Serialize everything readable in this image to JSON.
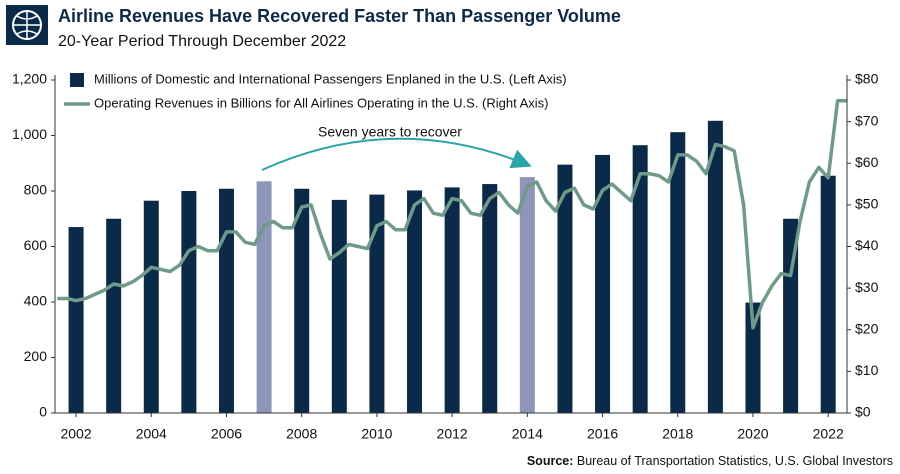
{
  "chart_data": {
    "type": "bar-line",
    "title": "Airline Revenues Have Recovered Faster Than Passenger Volume",
    "subtitle": "20-Year Period Through December 2022",
    "annotation": "Seven years to recover",
    "source_label": "Source:",
    "source_text": "Bureau of Transportation Statistics, U.S. Global Investors",
    "xlim": [
      2001.44,
      2022.5
    ],
    "xticks": [
      2002,
      2004,
      2006,
      2008,
      2010,
      2012,
      2014,
      2016,
      2018,
      2020,
      2022
    ],
    "ylim": [
      0,
      1200
    ],
    "yticks": [
      0,
      200,
      400,
      600,
      800,
      {
        "value": 1000,
        "label": "1,000"
      },
      {
        "value": 1200,
        "label": "1,200"
      }
    ],
    "y2lim": [
      0,
      80
    ],
    "y2ticks": [
      {
        "value": 0,
        "label": "$0"
      },
      {
        "value": 10,
        "label": "$10"
      },
      {
        "value": 20,
        "label": "$20"
      },
      {
        "value": 30,
        "label": "$30"
      },
      {
        "value": 40,
        "label": "$40"
      },
      {
        "value": 50,
        "label": "$50"
      },
      {
        "value": 60,
        "label": "$60"
      },
      {
        "value": 70,
        "label": "$70"
      },
      {
        "value": 80,
        "label": "$80"
      }
    ],
    "grid": false,
    "legend": "top-left",
    "series": [
      {
        "name": "Millions of Domestic and International Passengers Enplaned in the U.S. (Left Axis)",
        "type": "bar",
        "axis": "y",
        "color": "#0b2a4a",
        "colors": [
          "#0b2a4a",
          "#0b2a4a",
          "#0b2a4a",
          "#0b2a4a",
          "#0b2a4a",
          "#8d95b8",
          "#0b2a4a",
          "#0b2a4a",
          "#0b2a4a",
          "#0b2a4a",
          "#0b2a4a",
          "#0b2a4a",
          "#8d95b8",
          "#0b2a4a",
          "#0b2a4a",
          "#0b2a4a",
          "#0b2a4a",
          "#0b2a4a",
          "#0b2a4a",
          "#0b2a4a",
          "#0b2a4a"
        ],
        "x": [
          2002,
          2003,
          2004,
          2005,
          2006,
          2007,
          2008,
          2009,
          2010,
          2011,
          2012,
          2013,
          2014,
          2015,
          2016,
          2017,
          2018,
          2019,
          2020,
          2021,
          2022
        ],
        "values": [
          670,
          700,
          765,
          800,
          808,
          835,
          808,
          768,
          787,
          802,
          813,
          825,
          850,
          895,
          930,
          965,
          1012,
          1053,
          398,
          700,
          855
        ]
      },
      {
        "name": "Operating Revenues in Billions for All Airlines Operating in the U.S. (Right Axis)",
        "type": "line",
        "axis": "y2",
        "color": "#6f9a8a",
        "x": [
          2001.5,
          2001.75,
          2002,
          2002.25,
          2002.5,
          2002.75,
          2003,
          2003.25,
          2003.5,
          2003.75,
          2004,
          2004.25,
          2004.5,
          2004.75,
          2005,
          2005.25,
          2005.5,
          2005.75,
          2006,
          2006.25,
          2006.5,
          2006.75,
          2007,
          2007.25,
          2007.5,
          2007.75,
          2008,
          2008.25,
          2008.5,
          2008.75,
          2009,
          2009.25,
          2009.5,
          2009.75,
          2010,
          2010.25,
          2010.5,
          2010.75,
          2011,
          2011.25,
          2011.5,
          2011.75,
          2012,
          2012.25,
          2012.5,
          2012.75,
          2013,
          2013.25,
          2013.5,
          2013.75,
          2014,
          2014.25,
          2014.5,
          2014.75,
          2015,
          2015.25,
          2015.5,
          2015.75,
          2016,
          2016.25,
          2016.5,
          2016.75,
          2017,
          2017.25,
          2017.5,
          2017.75,
          2018,
          2018.25,
          2018.5,
          2018.75,
          2019,
          2019.25,
          2019.5,
          2019.75,
          2020,
          2020.25,
          2020.5,
          2020.75,
          2021,
          2021.25,
          2021.5,
          2021.75,
          2022,
          2022.25,
          2022.5
        ],
        "values": [
          27.5,
          27.5,
          27,
          27.5,
          28.5,
          29.5,
          31,
          30.5,
          31.5,
          33,
          35,
          34.5,
          34,
          35.5,
          39,
          40,
          39,
          39,
          43.5,
          43.5,
          41,
          40.5,
          45,
          46,
          44.5,
          44.5,
          49.5,
          50,
          43,
          37,
          38.5,
          40.5,
          40,
          39.5,
          45,
          46,
          44,
          44,
          50,
          51.5,
          48,
          47.5,
          51.5,
          51,
          48,
          47.5,
          51.5,
          53,
          50,
          48,
          54.5,
          55.5,
          51,
          48.5,
          53,
          54,
          50,
          49,
          53.5,
          55,
          53,
          51,
          57.5,
          57.5,
          57,
          55.5,
          62,
          62,
          60.5,
          57.5,
          64.5,
          64,
          63,
          50,
          20.5,
          26.5,
          30.5,
          33.5,
          33,
          46,
          55.5,
          59,
          56.5,
          75,
          75
        ]
      }
    ]
  }
}
